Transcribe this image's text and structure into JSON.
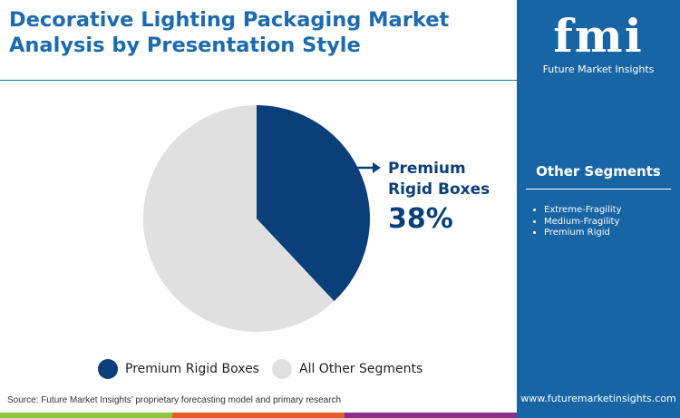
{
  "title": "Decorative Lighting Packaging Market Analysis by Presentation Style",
  "logo": {
    "text": "fmi",
    "subtitle": "Future Market Insights"
  },
  "other_segments": {
    "heading": "Other Segments",
    "items": [
      "Extreme-Fragility",
      "Medium-Fragility",
      "Premium Rigid"
    ]
  },
  "source": "Source: Future Market Insights’ proprietary forecasting model and primary research",
  "website": "www.futuremarketinsights.com",
  "colors": {
    "primary": "#0b3f7a",
    "other": "#e0e0e0",
    "sidebar": "#1865a6",
    "strip": [
      "#8dc641",
      "#e85a2a",
      "#8b2e8a"
    ]
  },
  "callout": {
    "label": "Premium Rigid Boxes",
    "value": "38%"
  },
  "chart_data": {
    "type": "pie",
    "slices": [
      {
        "name": "Premium Rigid Boxes",
        "value": 38
      },
      {
        "name": "All Other Segments",
        "value": 62
      }
    ],
    "legend": "bottom"
  }
}
